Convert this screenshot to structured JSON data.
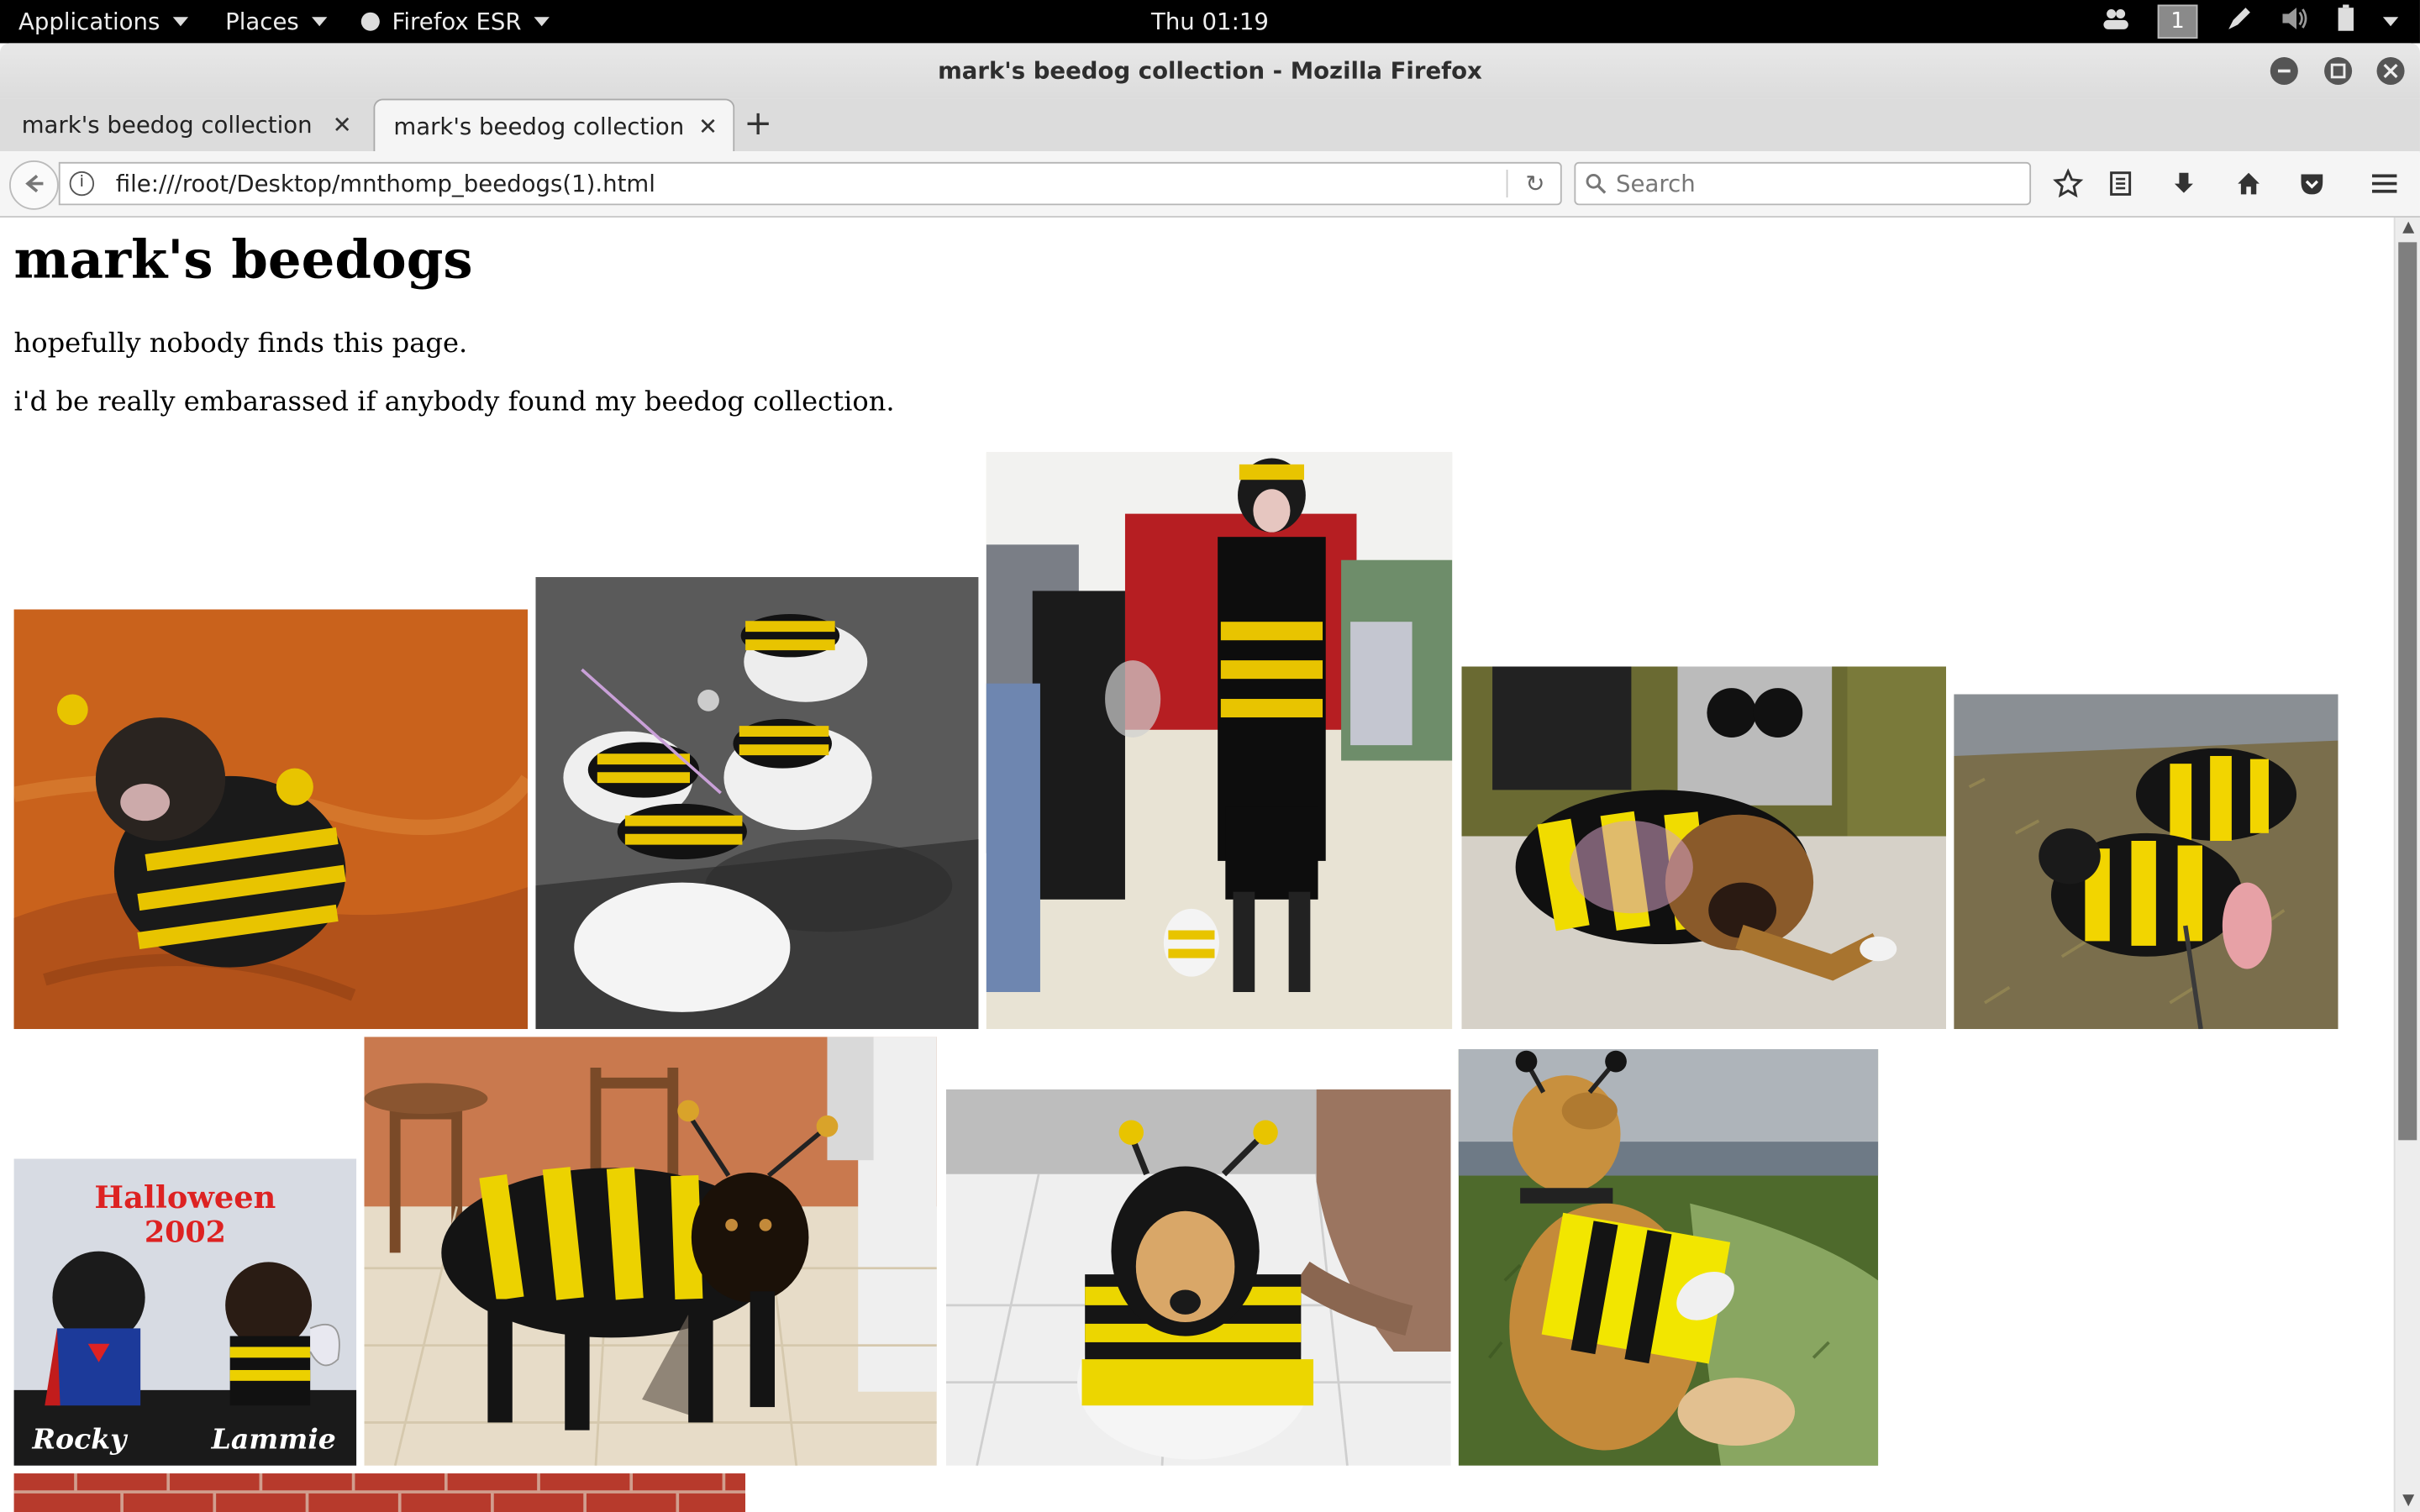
{
  "topbar": {
    "applications": "Applications",
    "places": "Places",
    "firefox": "Firefox ESR",
    "clock": "Thu 01:19",
    "workspace": "1"
  },
  "window": {
    "title": "mark's beedog collection - Mozilla Firefox"
  },
  "tabs": [
    {
      "label": "mark's beedog collection"
    },
    {
      "label": "mark's beedog collection"
    }
  ],
  "toolbar": {
    "url": "file:///root/Desktop/mnthomp_beedogs(1).html",
    "search_placeholder": "Search"
  },
  "page": {
    "heading": "mark's beedogs",
    "para1": "hopefully nobody finds this page.",
    "para2": "i'd be really embarassed if anybody found my beedog collection."
  },
  "photo_labels": {
    "halloween": "Halloween",
    "year": "2002",
    "name_left": "Rocky",
    "name_right": "Lammie"
  },
  "colors": {
    "bee_yellow": "#f2d200",
    "bee_black": "#141414",
    "accent": "#2e2e2e"
  }
}
